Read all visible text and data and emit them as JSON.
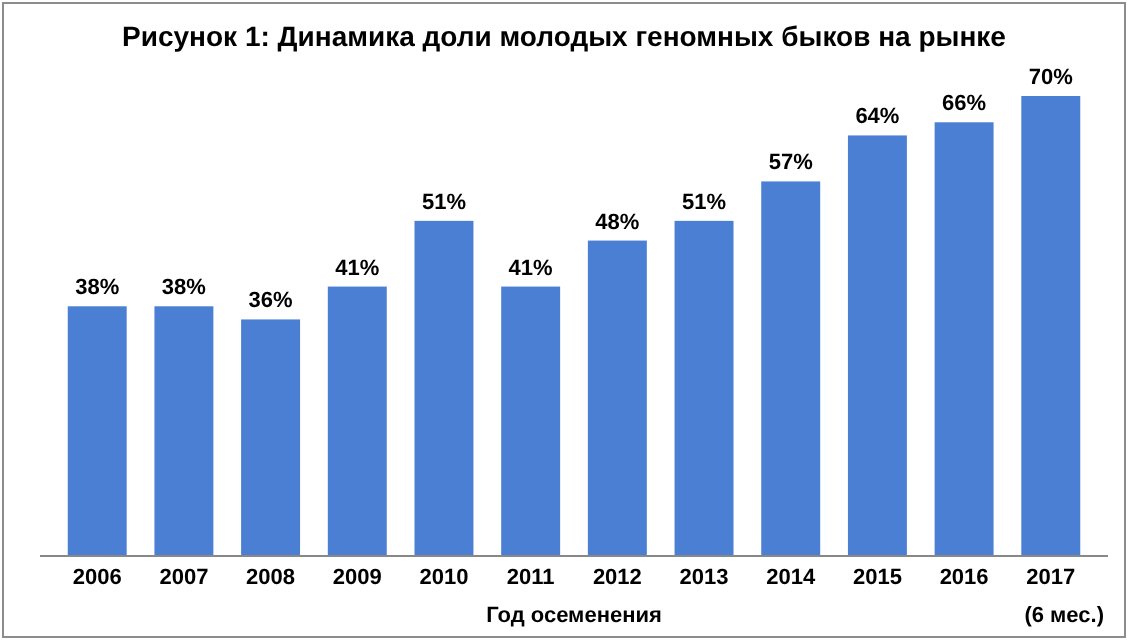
{
  "chart_data": {
    "type": "bar",
    "title": "Рисунок 1: Динамика доли молодых геномных быков на рынке",
    "xlabel": "Год осеменения",
    "categories": [
      "2006",
      "2007",
      "2008",
      "2009",
      "2010",
      "2011",
      "2012",
      "2013",
      "2014",
      "2015",
      "2016",
      "2017"
    ],
    "values": [
      38,
      38,
      36,
      41,
      51,
      41,
      48,
      51,
      57,
      64,
      66,
      70
    ],
    "value_labels": [
      "38%",
      "38%",
      "36%",
      "41%",
      "51%",
      "41%",
      "48%",
      "51%",
      "57%",
      "64%",
      "66%",
      "70%"
    ],
    "color": "#4a7fd4",
    "annotations": [
      "(6 мес.)"
    ]
  }
}
